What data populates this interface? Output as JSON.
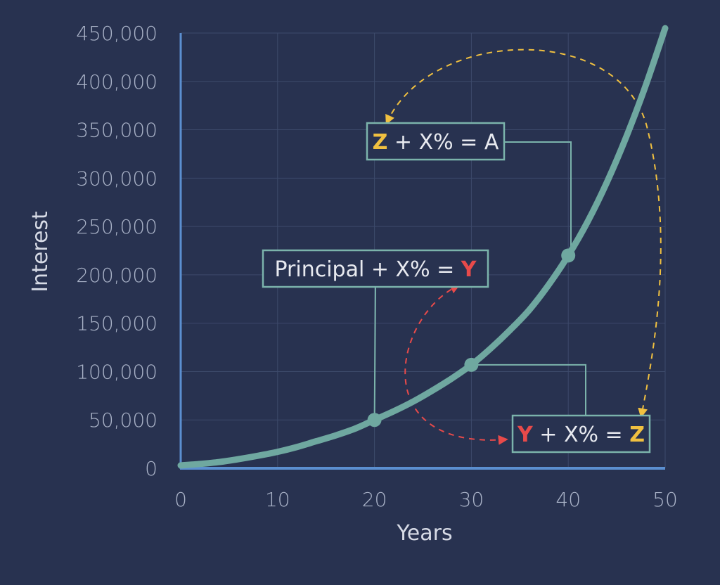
{
  "colors": {
    "background": "#283250",
    "grid": "#3d4a6b",
    "axis": "#5b8fd0",
    "curve": "#6fa8a0",
    "box_border": "#7bb3ab",
    "yellow": "#f0c040",
    "red": "#e84a4a",
    "text": "#e8eaf0",
    "tick_text": "#aab3c8"
  },
  "chart_data": {
    "type": "line",
    "xlabel": "Years",
    "ylabel": "Interest",
    "xlim": [
      0,
      50
    ],
    "ylim": [
      0,
      450000
    ],
    "x_ticks": [
      "0",
      "10",
      "20",
      "30",
      "40",
      "50"
    ],
    "y_ticks": [
      "0",
      "50,000",
      "100,000",
      "150,000",
      "200,000",
      "250,000",
      "300,000",
      "350,000",
      "400,000",
      "450,000"
    ],
    "grid": true,
    "series": [
      {
        "x": [
          0,
          2,
          4,
          6,
          8,
          10,
          12,
          14,
          16,
          18,
          20,
          22,
          24,
          26,
          28,
          30,
          32,
          34,
          36,
          38,
          40,
          42,
          44,
          46,
          48,
          50
        ],
        "values": [
          3000,
          4500,
          6500,
          9500,
          13000,
          17000,
          22000,
          28000,
          34000,
          41000,
          50000,
          59000,
          69000,
          80500,
          93000,
          107000,
          124000,
          143000,
          164000,
          190000,
          220000,
          255000,
          296000,
          343000,
          396000,
          455000
        ]
      }
    ],
    "markers": [
      {
        "x": 20,
        "y": 50000
      },
      {
        "x": 30,
        "y": 107000
      },
      {
        "x": 40,
        "y": 220000
      }
    ],
    "annotations": [
      {
        "parts": [
          {
            "text": "Principal",
            "color": "text"
          },
          {
            "text": " + X% = ",
            "color": "text"
          },
          {
            "text": "Y",
            "color": "red"
          }
        ]
      },
      {
        "parts": [
          {
            "text": "Y",
            "color": "red"
          },
          {
            "text": " + X% = ",
            "color": "text"
          },
          {
            "text": "Z",
            "color": "yellow"
          }
        ]
      },
      {
        "parts": [
          {
            "text": "Z",
            "color": "yellow"
          },
          {
            "text": " + X% = A",
            "color": "text"
          }
        ]
      }
    ]
  }
}
